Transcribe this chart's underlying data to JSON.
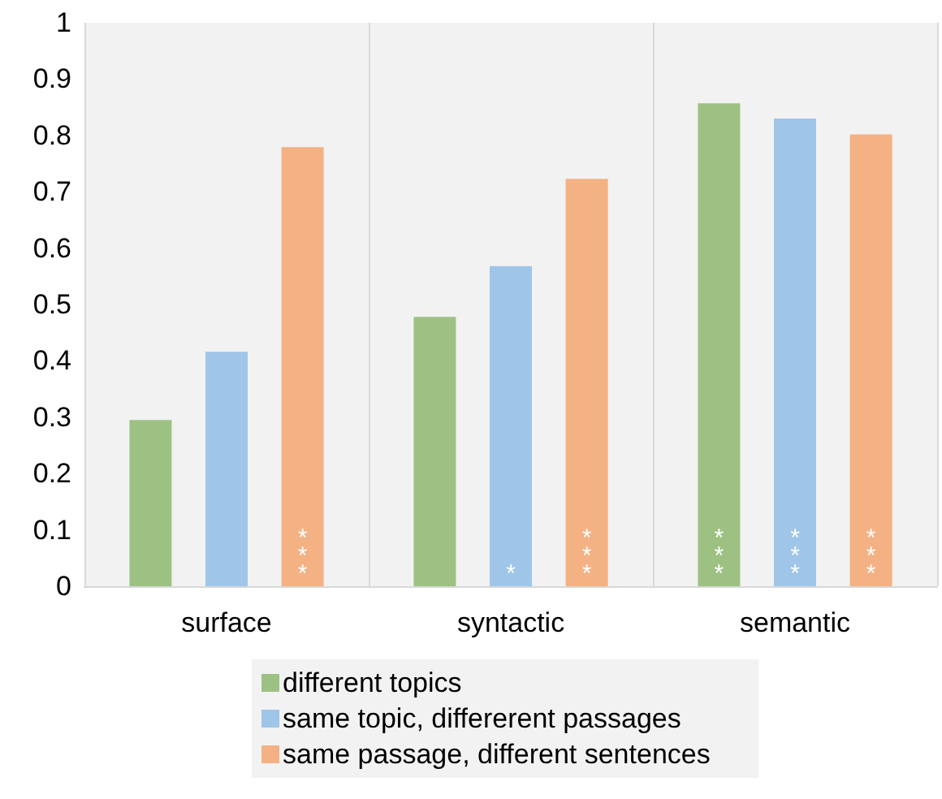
{
  "chart_data": {
    "type": "bar",
    "categories": [
      "surface",
      "syntactic",
      "semantic"
    ],
    "series": [
      {
        "name": "different topics",
        "color": "#9dc183",
        "values": [
          0.295,
          0.478,
          0.857
        ],
        "value_labels": [
          null,
          null,
          "***"
        ]
      },
      {
        "name": "same topic, differerent passages",
        "color": "#9fc5e8",
        "values": [
          0.416,
          0.568,
          0.83
        ],
        "value_labels": [
          null,
          "*",
          "***"
        ]
      },
      {
        "name": "same passage, different sentences",
        "color": "#f4b183",
        "values": [
          0.779,
          0.723,
          0.802
        ],
        "value_labels": [
          "***",
          "***",
          "***"
        ]
      }
    ],
    "ylim": [
      0,
      1
    ],
    "yticks": [
      0,
      0.1,
      0.2,
      0.3,
      0.4,
      0.5,
      0.6,
      0.7,
      0.8,
      0.9,
      1
    ],
    "grid": "x",
    "legend": "bottom"
  }
}
